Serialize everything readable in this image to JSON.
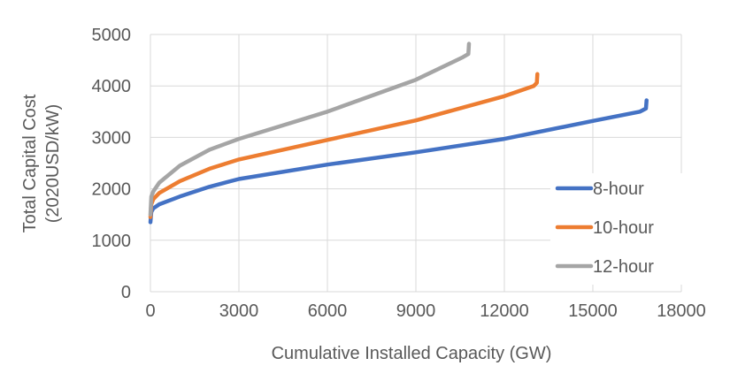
{
  "chart_data": {
    "type": "line",
    "title": "",
    "xlabel": "Cumulative Installed Capacity (GW)",
    "ylabel": "Total Capital Cost (2020USD/kW)",
    "xlim": [
      0,
      18000
    ],
    "ylim": [
      0,
      5000
    ],
    "xticks": [
      0,
      3000,
      6000,
      9000,
      12000,
      15000,
      18000
    ],
    "yticks": [
      0,
      1000,
      2000,
      3000,
      4000,
      5000
    ],
    "grid": true,
    "legend_position": "right",
    "series": [
      {
        "name": "8-hour",
        "color": "#4472C4",
        "x": [
          0,
          30,
          100,
          300,
          1000,
          2000,
          3000,
          6000,
          9000,
          12000,
          15000,
          16600,
          16800,
          16820
        ],
        "y": [
          1350,
          1550,
          1620,
          1700,
          1850,
          2040,
          2190,
          2470,
          2710,
          2970,
          3320,
          3500,
          3560,
          3720
        ]
      },
      {
        "name": "10-hour",
        "color": "#ED7D31",
        "x": [
          0,
          30,
          100,
          300,
          1000,
          2000,
          3000,
          6000,
          9000,
          12000,
          13000,
          13100,
          13120
        ],
        "y": [
          1450,
          1700,
          1800,
          1920,
          2150,
          2390,
          2570,
          2950,
          3330,
          3800,
          4000,
          4060,
          4230
        ]
      },
      {
        "name": "12-hour",
        "color": "#A5A5A5",
        "x": [
          0,
          30,
          100,
          300,
          1000,
          2000,
          3000,
          6000,
          9000,
          10600,
          10780,
          10800
        ],
        "y": [
          1500,
          1850,
          1950,
          2120,
          2450,
          2760,
          2970,
          3500,
          4120,
          4560,
          4620,
          4820
        ]
      }
    ]
  }
}
